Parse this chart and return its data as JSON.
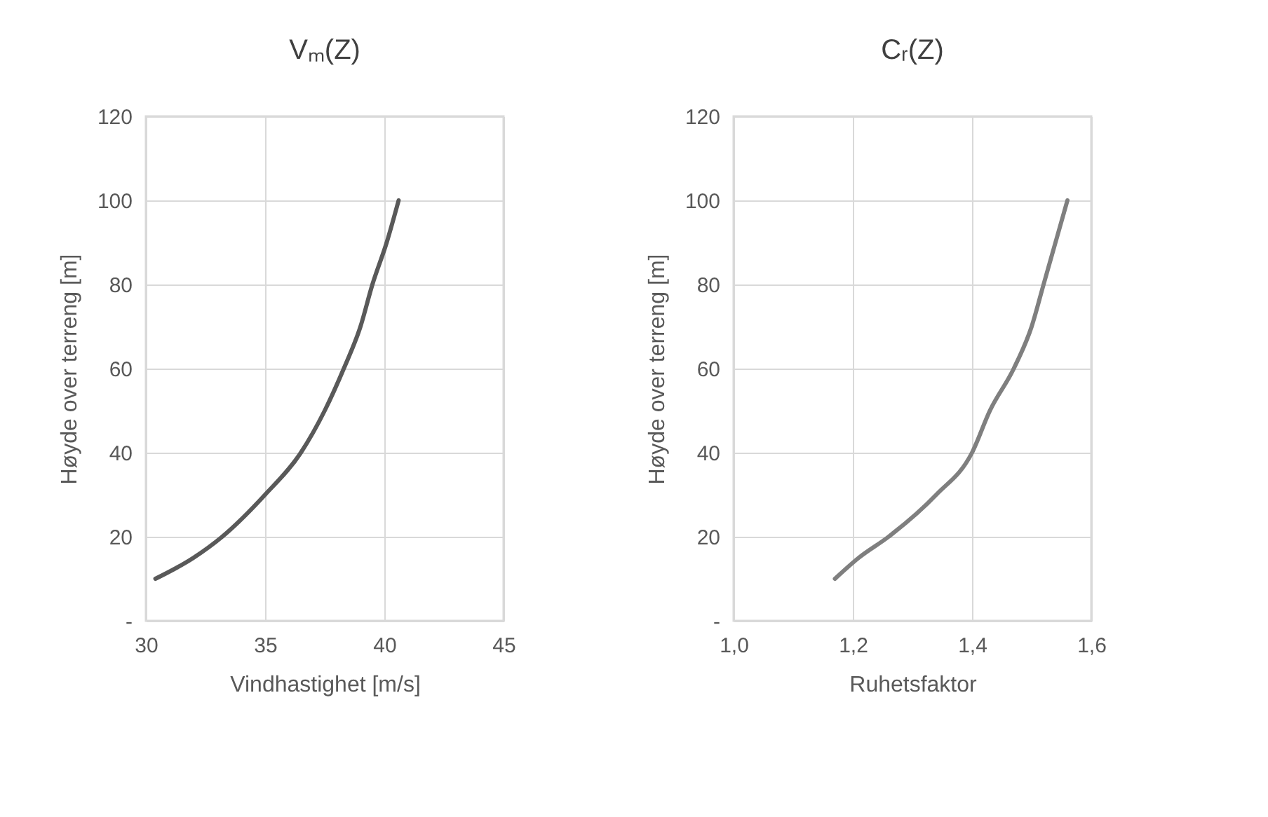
{
  "chart_data": [
    {
      "type": "line",
      "title": "Vₘ(Z)",
      "xlabel": "Vindhastighet [m/s]",
      "ylabel": "Høyde over terreng [m]",
      "x": [
        30.4,
        32.0,
        33.2,
        35.0,
        36.5,
        37.5,
        38.3,
        39.0,
        39.5,
        40.1,
        40.6
      ],
      "series": [
        {
          "color": "#595959",
          "values": [
            10,
            15,
            20,
            30,
            40,
            50,
            60,
            70,
            80,
            90,
            100
          ]
        }
      ],
      "xlim": [
        30,
        45
      ],
      "xticks": [
        30,
        35,
        40,
        45
      ],
      "ylim": [
        0,
        120
      ],
      "yticks": [
        {
          "value": 0,
          "label": "-"
        },
        20,
        40,
        60,
        80,
        100,
        120
      ],
      "grid": true,
      "line_style": "solid",
      "marker": "none"
    },
    {
      "type": "line",
      "title": "Cᵣ(Z)",
      "xlabel": "Ruhetsfaktor",
      "ylabel": "Høyde over terreng [m]",
      "x": [
        1.17,
        1.21,
        1.26,
        1.34,
        1.4,
        1.43,
        1.47,
        1.5,
        1.52,
        1.54,
        1.56
      ],
      "series": [
        {
          "color": "#7f7f7f",
          "values": [
            10,
            15,
            20,
            30,
            40,
            50,
            60,
            70,
            80,
            90,
            100
          ]
        }
      ],
      "xlim": [
        1.0,
        1.6
      ],
      "xticks": [
        {
          "value": 1.0,
          "label": "1,0"
        },
        {
          "value": 1.2,
          "label": "1,2"
        },
        {
          "value": 1.4,
          "label": "1,4"
        },
        {
          "value": 1.6,
          "label": "1,6"
        }
      ],
      "ylim": [
        0,
        120
      ],
      "yticks": [
        {
          "value": 0,
          "label": "-"
        },
        20,
        40,
        60,
        80,
        100,
        120
      ],
      "grid": true,
      "line_style": "solid",
      "marker": "none"
    }
  ]
}
